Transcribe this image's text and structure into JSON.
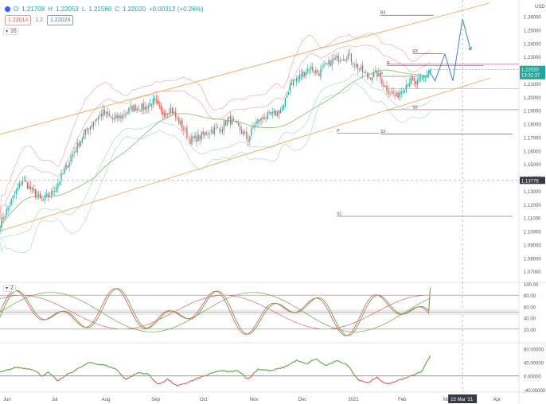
{
  "header": {
    "ohlc": [
      {
        "key": "O",
        "val": "1.21708"
      },
      {
        "key": "H",
        "val": "1.22053"
      },
      {
        "key": "L",
        "val": "1.21560"
      },
      {
        "key": "C",
        "val": "1.22020"
      },
      {
        "key": "",
        "val": "+0.00312 (+0.26%)"
      }
    ],
    "badges": [
      "1.22014",
      "1.2",
      "1.22024"
    ],
    "ind1_tag": "16",
    "ind2_tag": "2"
  },
  "colors": {
    "bull": "#26a69a",
    "bear": "#ef5350",
    "channel": "#f6b26b",
    "bb_outer": "#f4b6b6",
    "bb_inner": "#b7e1cd",
    "ma": "#93c47d",
    "projection": "#3d85c6",
    "stoch_k": "#e06666",
    "stoch_d": "#6aa84f",
    "osc": "#6aa84f",
    "osc_neg": "#e06666"
  },
  "chart_data": {
    "type": "line",
    "title": "",
    "price_axis": {
      "currency": "USD",
      "ticks": [
        "1.26000",
        "1.25000",
        "1.24000",
        "1.23000",
        "1.22000",
        "1.21000",
        "1.20000",
        "1.19000",
        "1.18000",
        "1.17000",
        "1.16000",
        "1.15000",
        "1.14000",
        "1.13000",
        "1.12000",
        "1.11000",
        "1.10000",
        "1.09000",
        "1.08000",
        "1.07000"
      ],
      "ylim": [
        1.063,
        1.271
      ],
      "current_price": "1.22020",
      "countdown": "13:32:37",
      "crosshair_price": "1.13778"
    },
    "time_axis": {
      "labels": [
        "Jun",
        "Jul",
        "Aug",
        "Sep",
        "Oct",
        "Nov",
        "Dec",
        "2021",
        "Feb",
        "Mar",
        "Apr"
      ],
      "label_index": [
        0,
        30,
        61,
        92,
        122,
        153,
        183,
        214,
        245,
        273,
        304
      ],
      "crosshair_date": "15 Mar '21",
      "crosshair_index": 287,
      "last_bar_index": 267,
      "end_index": 322
    },
    "candles_close_anchors": [
      [
        0,
        1.105
      ],
      [
        8,
        1.125
      ],
      [
        14,
        1.138
      ],
      [
        20,
        1.13
      ],
      [
        26,
        1.122
      ],
      [
        32,
        1.128
      ],
      [
        38,
        1.14
      ],
      [
        44,
        1.155
      ],
      [
        52,
        1.172
      ],
      [
        58,
        1.182
      ],
      [
        64,
        1.188
      ],
      [
        70,
        1.183
      ],
      [
        76,
        1.186
      ],
      [
        82,
        1.192
      ],
      [
        90,
        1.192
      ],
      [
        96,
        1.197
      ],
      [
        100,
        1.188
      ],
      [
        106,
        1.191
      ],
      [
        112,
        1.18
      ],
      [
        118,
        1.168
      ],
      [
        124,
        1.17
      ],
      [
        130,
        1.175
      ],
      [
        136,
        1.176
      ],
      [
        142,
        1.183
      ],
      [
        148,
        1.177
      ],
      [
        154,
        1.168
      ],
      [
        158,
        1.18
      ],
      [
        164,
        1.185
      ],
      [
        170,
        1.187
      ],
      [
        176,
        1.192
      ],
      [
        180,
        1.21
      ],
      [
        186,
        1.215
      ],
      [
        192,
        1.222
      ],
      [
        198,
        1.218
      ],
      [
        204,
        1.225
      ],
      [
        210,
        1.229
      ],
      [
        216,
        1.231
      ],
      [
        222,
        1.222
      ],
      [
        228,
        1.215
      ],
      [
        234,
        1.217
      ],
      [
        240,
        1.206
      ],
      [
        246,
        1.2
      ],
      [
        250,
        1.207
      ],
      [
        254,
        1.212
      ],
      [
        258,
        1.21
      ],
      [
        262,
        1.213
      ],
      [
        267,
        1.2202
      ]
    ],
    "channel": [
      {
        "from": [
          0,
          1.172
        ],
        "to": [
          304,
          1.27
        ]
      },
      {
        "from": [
          0,
          1.1
        ],
        "to": [
          304,
          1.214
        ]
      }
    ],
    "levels": [
      {
        "label": "R3",
        "price": 1.2608,
        "from": 236,
        "to": 269
      },
      {
        "label": "R3",
        "price": 1.2322,
        "from": 256,
        "to": 275
      },
      {
        "label": "R",
        "price": 1.2233,
        "from": 240,
        "to": 300
      },
      {
        "label": "P",
        "price": 1.2153,
        "from": 236,
        "to": 266
      },
      {
        "label": "S3",
        "price": 1.1905,
        "from": 256,
        "to": 275
      },
      {
        "label": "P",
        "price": 1.173,
        "from": 209,
        "to": 235
      },
      {
        "label": "S3",
        "price": 1.1724,
        "from": 236,
        "to": 318
      },
      {
        "label": "S1",
        "price": 1.111,
        "from": 209,
        "to": 318
      }
    ],
    "projection": [
      [
        266,
        1.22
      ],
      [
        270,
        1.212
      ],
      [
        276,
        1.232
      ],
      [
        281,
        1.212
      ],
      [
        287,
        1.258
      ],
      [
        292,
        1.235
      ]
    ],
    "stochastic": {
      "ticks": [
        "100.00",
        "80.00",
        "60.00",
        "40.00",
        "20.00"
      ],
      "ylim": [
        0,
        100
      ],
      "levels": [
        80,
        50,
        20
      ]
    },
    "oscillator": {
      "ticks": [
        "80.00000",
        "40.00000",
        "0.00000",
        "-40.00000"
      ],
      "ylim": [
        -45,
        90
      ],
      "anchors": [
        [
          0,
          10
        ],
        [
          10,
          25
        ],
        [
          20,
          20
        ],
        [
          26,
          0
        ],
        [
          30,
          10
        ],
        [
          36,
          -15
        ],
        [
          42,
          5
        ],
        [
          50,
          25
        ],
        [
          56,
          40
        ],
        [
          60,
          35
        ],
        [
          66,
          30
        ],
        [
          72,
          20
        ],
        [
          78,
          -10
        ],
        [
          86,
          10
        ],
        [
          92,
          5
        ],
        [
          98,
          -25
        ],
        [
          104,
          -10
        ],
        [
          110,
          -30
        ],
        [
          116,
          -20
        ],
        [
          124,
          -5
        ],
        [
          130,
          5
        ],
        [
          136,
          15
        ],
        [
          142,
          12
        ],
        [
          148,
          15
        ],
        [
          154,
          -10
        ],
        [
          160,
          20
        ],
        [
          168,
          15
        ],
        [
          176,
          25
        ],
        [
          184,
          45
        ],
        [
          190,
          35
        ],
        [
          196,
          50
        ],
        [
          202,
          30
        ],
        [
          210,
          45
        ],
        [
          216,
          30
        ],
        [
          222,
          -10
        ],
        [
          228,
          -20
        ],
        [
          234,
          -5
        ],
        [
          240,
          -25
        ],
        [
          246,
          -15
        ],
        [
          252,
          -5
        ],
        [
          258,
          5
        ],
        [
          262,
          15
        ],
        [
          267,
          60
        ]
      ]
    }
  }
}
